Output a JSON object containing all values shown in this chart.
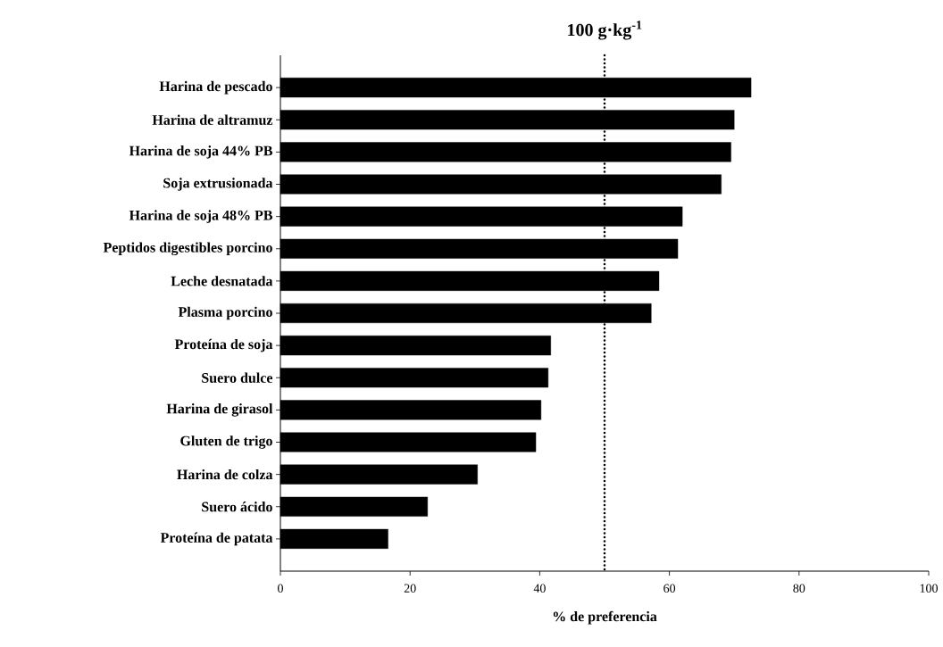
{
  "chart_data": {
    "type": "bar",
    "orientation": "horizontal",
    "title": "100 g·kg$^{-1}$",
    "xlabel": "% de preferencia",
    "categories": [
      "Harina de pescado",
      "Harina de altramuz",
      "Harina de soja 44% PB",
      "Soja extrusionada",
      "Harina de soja 48% PB",
      "Peptidos digestibles porcino",
      "Leche desnatada",
      "Plasma porcino",
      "Proteína de soja",
      "Suero dulce",
      "Harina de girasol",
      "Gluten de trigo",
      "Harina de colza",
      "Suero ácido",
      "Proteína de patata"
    ],
    "values": [
      72.6,
      70.0,
      69.5,
      68.0,
      62.0,
      61.3,
      58.4,
      57.2,
      41.7,
      41.3,
      40.2,
      39.4,
      30.4,
      22.7,
      16.6
    ],
    "color": "#000000",
    "xlim": [
      0,
      100
    ],
    "xticks": [
      0,
      20,
      40,
      60,
      80,
      100
    ],
    "ref_lines": [
      {
        "axis": "x",
        "value": 50,
        "line_style": "dotted",
        "color": "#000000"
      }
    ]
  }
}
